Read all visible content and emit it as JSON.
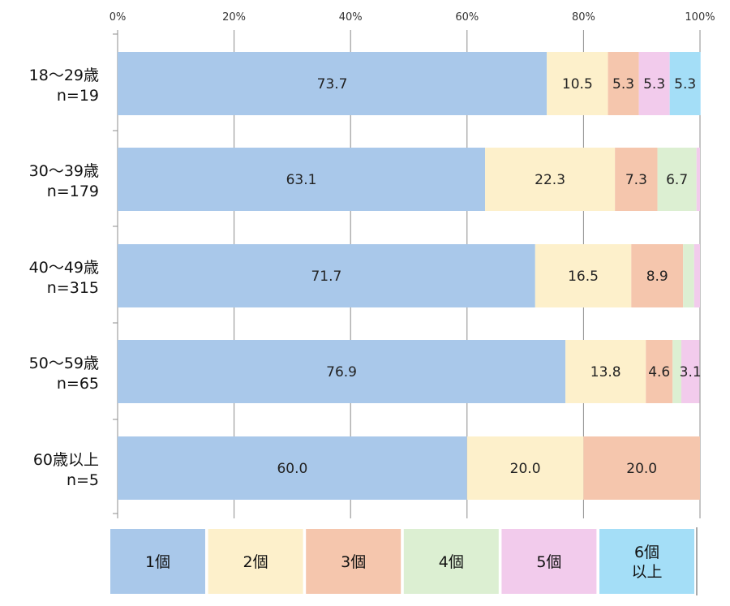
{
  "chart_data": {
    "type": "bar",
    "orientation": "horizontal",
    "stacked": true,
    "x_ticks": [
      "0%",
      "20%",
      "40%",
      "60%",
      "80%",
      "100%"
    ],
    "xlim": [
      0,
      100
    ],
    "categories": [
      [
        "18～29歳",
        "n=19"
      ],
      [
        "30～39歳",
        "n=179"
      ],
      [
        "40～49歳",
        "n=315"
      ],
      [
        "50～59歳",
        "n=65"
      ],
      [
        "60歳以上",
        "n=5"
      ]
    ],
    "series": [
      {
        "name": "1個",
        "legend_lines": [
          "1個"
        ],
        "color": "#A9C8EA",
        "values": [
          73.7,
          63.1,
          71.7,
          76.9,
          60.0
        ],
        "labels": [
          "73.7",
          "63.1",
          "71.7",
          "76.9",
          "60.0"
        ]
      },
      {
        "name": "2個",
        "legend_lines": [
          "2個"
        ],
        "color": "#FDF0CB",
        "values": [
          10.5,
          22.3,
          16.5,
          13.8,
          20.0
        ],
        "labels": [
          "10.5",
          "22.3",
          "16.5",
          "13.8",
          "20.0"
        ]
      },
      {
        "name": "3個",
        "legend_lines": [
          "3個"
        ],
        "color": "#F5C6AD",
        "values": [
          5.3,
          7.3,
          8.9,
          4.6,
          20.0
        ],
        "labels": [
          "5.3",
          "7.3",
          "8.9",
          "4.6",
          "20.0"
        ]
      },
      {
        "name": "4個",
        "legend_lines": [
          "4個"
        ],
        "color": "#DCEFD2",
        "values": [
          0,
          6.7,
          1.9,
          1.5,
          0
        ],
        "labels": [
          "",
          "6.7",
          "",
          "",
          ""
        ]
      },
      {
        "name": "5個",
        "legend_lines": [
          "5個"
        ],
        "color": "#F2CBEC",
        "values": [
          5.3,
          0.6,
          1.0,
          3.1,
          0
        ],
        "labels": [
          "5.3",
          "",
          "",
          "3.1",
          ""
        ]
      },
      {
        "name": "6個以上",
        "legend_lines": [
          "6個",
          "以上"
        ],
        "color": "#A4DEF7",
        "values": [
          5.3,
          0,
          0,
          0,
          0
        ],
        "labels": [
          "5.3",
          "",
          "",
          "",
          ""
        ]
      }
    ],
    "grid": true,
    "legend_position": "bottom"
  }
}
